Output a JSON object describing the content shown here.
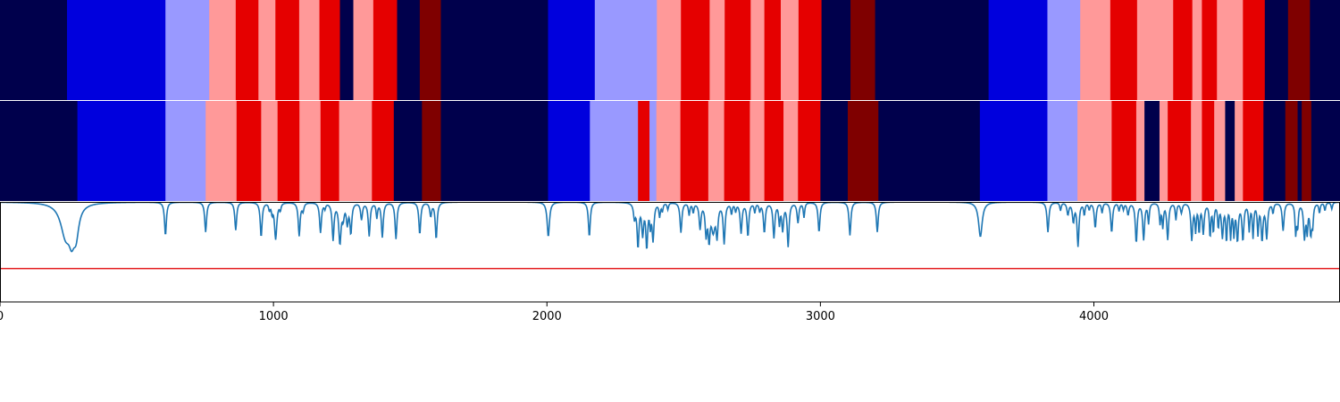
{
  "palette": {
    "0": "#00004c",
    "1": "#0000dd",
    "2": "#9999ff",
    "3": "#ff9999",
    "4": "#e50000",
    "5": "#7f0000"
  },
  "chart_data": {
    "type": "heatmap",
    "title": "",
    "xlabel": "",
    "ylabel": "",
    "xlim": [
      0,
      4900
    ],
    "x_ticks": [
      0,
      1000,
      2000,
      3000,
      4000
    ],
    "x_tick_labels": [
      "0",
      "1000",
      "2000",
      "3000",
      "4000"
    ],
    "segment_rows": [
      {
        "segments": [
          [
            0,
            245,
            0
          ],
          [
            245,
            605,
            1
          ],
          [
            605,
            765,
            2
          ],
          [
            765,
            862,
            3
          ],
          [
            862,
            945,
            4
          ],
          [
            945,
            1007,
            3
          ],
          [
            1007,
            1094,
            4
          ],
          [
            1094,
            1168,
            3
          ],
          [
            1168,
            1243,
            4
          ],
          [
            1243,
            1292,
            0
          ],
          [
            1292,
            1365,
            3
          ],
          [
            1365,
            1452,
            4
          ],
          [
            1452,
            1535,
            0
          ],
          [
            1535,
            1612,
            5
          ],
          [
            1612,
            2004,
            0
          ],
          [
            2004,
            2175,
            1
          ],
          [
            2175,
            2402,
            2
          ],
          [
            2402,
            2490,
            3
          ],
          [
            2490,
            2595,
            4
          ],
          [
            2595,
            2650,
            3
          ],
          [
            2650,
            2745,
            4
          ],
          [
            2745,
            2795,
            3
          ],
          [
            2795,
            2855,
            4
          ],
          [
            2855,
            2920,
            3
          ],
          [
            2920,
            3004,
            4
          ],
          [
            3004,
            3110,
            0
          ],
          [
            3110,
            3200,
            5
          ],
          [
            3200,
            3615,
            0
          ],
          [
            3615,
            3830,
            1
          ],
          [
            3830,
            3950,
            2
          ],
          [
            3950,
            4060,
            3
          ],
          [
            4060,
            4158,
            4
          ],
          [
            4158,
            4290,
            3
          ],
          [
            4290,
            4360,
            4
          ],
          [
            4360,
            4395,
            3
          ],
          [
            4395,
            4450,
            4
          ],
          [
            4450,
            4545,
            3
          ],
          [
            4545,
            4625,
            4
          ],
          [
            4625,
            4710,
            0
          ],
          [
            4710,
            4790,
            5
          ],
          [
            4790,
            4900,
            0
          ]
        ]
      },
      {
        "segments": [
          [
            0,
            283,
            0
          ],
          [
            283,
            605,
            1
          ],
          [
            605,
            752,
            2
          ],
          [
            752,
            865,
            3
          ],
          [
            865,
            955,
            4
          ],
          [
            955,
            1015,
            3
          ],
          [
            1015,
            1095,
            4
          ],
          [
            1095,
            1172,
            3
          ],
          [
            1172,
            1240,
            4
          ],
          [
            1240,
            1360,
            3
          ],
          [
            1360,
            1440,
            4
          ],
          [
            1440,
            1543,
            0
          ],
          [
            1543,
            1612,
            5
          ],
          [
            1612,
            2004,
            0
          ],
          [
            2004,
            2157,
            1
          ],
          [
            2157,
            2333,
            2
          ],
          [
            2333,
            2375,
            4
          ],
          [
            2375,
            2400,
            2
          ],
          [
            2400,
            2488,
            3
          ],
          [
            2488,
            2590,
            4
          ],
          [
            2590,
            2648,
            3
          ],
          [
            2648,
            2742,
            4
          ],
          [
            2742,
            2795,
            3
          ],
          [
            2795,
            2865,
            4
          ],
          [
            2865,
            2918,
            3
          ],
          [
            2918,
            3000,
            4
          ],
          [
            3000,
            3100,
            0
          ],
          [
            3100,
            3212,
            5
          ],
          [
            3212,
            3583,
            0
          ],
          [
            3583,
            3830,
            1
          ],
          [
            3830,
            3940,
            2
          ],
          [
            3940,
            4065,
            3
          ],
          [
            4065,
            4155,
            4
          ],
          [
            4155,
            4185,
            3
          ],
          [
            4185,
            4240,
            0
          ],
          [
            4240,
            4270,
            3
          ],
          [
            4270,
            4355,
            4
          ],
          [
            4355,
            4395,
            3
          ],
          [
            4395,
            4440,
            4
          ],
          [
            4440,
            4480,
            3
          ],
          [
            4480,
            4515,
            0
          ],
          [
            4515,
            4545,
            3
          ],
          [
            4545,
            4620,
            4
          ],
          [
            4620,
            4700,
            0
          ],
          [
            4700,
            4745,
            5
          ],
          [
            4745,
            4760,
            0
          ],
          [
            4760,
            4795,
            5
          ],
          [
            4795,
            4900,
            0
          ]
        ]
      }
    ],
    "line_series": {
      "baseline": 1.0,
      "ylim": [
        -0.5,
        1.0
      ],
      "threshold": 0.0,
      "threshold_color": "#e41a1c",
      "line_color": "#1f77b4",
      "dips": [
        [
          240,
          22,
          0.48
        ],
        [
          262,
          12,
          0.36
        ],
        [
          278,
          12,
          0.4
        ],
        [
          605,
          4,
          0.5
        ],
        [
          752,
          4,
          0.45
        ],
        [
          862,
          4,
          0.42
        ],
        [
          955,
          4,
          0.52
        ],
        [
          985,
          3,
          0.1
        ],
        [
          995,
          3,
          0.14
        ],
        [
          1008,
          5,
          0.55
        ],
        [
          1025,
          3,
          0.1
        ],
        [
          1094,
          4,
          0.5
        ],
        [
          1108,
          4,
          0.12
        ],
        [
          1172,
          4,
          0.45
        ],
        [
          1188,
          3,
          0.08
        ],
        [
          1218,
          4,
          0.55
        ],
        [
          1243,
          5,
          0.6
        ],
        [
          1255,
          4,
          0.2
        ],
        [
          1270,
          4,
          0.3
        ],
        [
          1283,
          4,
          0.45
        ],
        [
          1322,
          4,
          0.25
        ],
        [
          1350,
          4,
          0.5
        ],
        [
          1378,
          3,
          0.22
        ],
        [
          1398,
          4,
          0.52
        ],
        [
          1448,
          4,
          0.55
        ],
        [
          1535,
          4,
          0.48
        ],
        [
          1575,
          4,
          0.2
        ],
        [
          1595,
          4,
          0.55
        ],
        [
          2005,
          5,
          0.52
        ],
        [
          2155,
          4,
          0.52
        ],
        [
          2320,
          4,
          0.22
        ],
        [
          2333,
          4,
          0.65
        ],
        [
          2350,
          4,
          0.45
        ],
        [
          2365,
          4,
          0.65
        ],
        [
          2378,
          3,
          0.3
        ],
        [
          2388,
          4,
          0.55
        ],
        [
          2412,
          3,
          0.2
        ],
        [
          2422,
          3,
          0.12
        ],
        [
          2442,
          3,
          0.1
        ],
        [
          2490,
          4,
          0.45
        ],
        [
          2520,
          3,
          0.18
        ],
        [
          2535,
          3,
          0.14
        ],
        [
          2560,
          4,
          0.38
        ],
        [
          2582,
          4,
          0.45
        ],
        [
          2593,
          4,
          0.5
        ],
        [
          2608,
          8,
          0.4
        ],
        [
          2622,
          4,
          0.45
        ],
        [
          2648,
          4,
          0.6
        ],
        [
          2675,
          3,
          0.16
        ],
        [
          2690,
          3,
          0.12
        ],
        [
          2710,
          4,
          0.45
        ],
        [
          2735,
          4,
          0.5
        ],
        [
          2760,
          3,
          0.14
        ],
        [
          2778,
          3,
          0.12
        ],
        [
          2795,
          4,
          0.45
        ],
        [
          2830,
          4,
          0.52
        ],
        [
          2850,
          3,
          0.3
        ],
        [
          2862,
          4,
          0.4
        ],
        [
          2882,
          4,
          0.65
        ],
        [
          2918,
          4,
          0.3
        ],
        [
          2940,
          3,
          0.22
        ],
        [
          2995,
          4,
          0.45
        ],
        [
          3108,
          4,
          0.5
        ],
        [
          3208,
          4,
          0.45
        ],
        [
          3585,
          8,
          0.52
        ],
        [
          3832,
          4,
          0.45
        ],
        [
          3878,
          3,
          0.12
        ],
        [
          3905,
          4,
          0.18
        ],
        [
          3925,
          4,
          0.28
        ],
        [
          3942,
          4,
          0.65
        ],
        [
          3965,
          3,
          0.18
        ],
        [
          3983,
          3,
          0.1
        ],
        [
          4005,
          4,
          0.38
        ],
        [
          4030,
          3,
          0.15
        ],
        [
          4065,
          4,
          0.45
        ],
        [
          4092,
          3,
          0.12
        ],
        [
          4108,
          3,
          0.1
        ],
        [
          4125,
          4,
          0.18
        ],
        [
          4155,
          4,
          0.6
        ],
        [
          4182,
          4,
          0.55
        ],
        [
          4200,
          3,
          0.3
        ],
        [
          4242,
          3,
          0.3
        ],
        [
          4252,
          3,
          0.35
        ],
        [
          4270,
          4,
          0.55
        ],
        [
          4300,
          3,
          0.25
        ],
        [
          4320,
          4,
          0.15
        ],
        [
          4358,
          4,
          0.55
        ],
        [
          4372,
          3,
          0.4
        ],
        [
          4385,
          3,
          0.42
        ],
        [
          4400,
          4,
          0.45
        ],
        [
          4425,
          3,
          0.5
        ],
        [
          4437,
          3,
          0.42
        ],
        [
          4455,
          3,
          0.35
        ],
        [
          4470,
          4,
          0.5
        ],
        [
          4485,
          3,
          0.55
        ],
        [
          4500,
          3,
          0.5
        ],
        [
          4512,
          3,
          0.45
        ],
        [
          4525,
          4,
          0.55
        ],
        [
          4545,
          4,
          0.55
        ],
        [
          4568,
          3,
          0.4
        ],
        [
          4582,
          3,
          0.5
        ],
        [
          4600,
          3,
          0.45
        ],
        [
          4615,
          4,
          0.55
        ],
        [
          4632,
          4,
          0.52
        ],
        [
          4655,
          3,
          0.15
        ],
        [
          4692,
          4,
          0.42
        ],
        [
          4738,
          3,
          0.45
        ],
        [
          4745,
          3,
          0.35
        ],
        [
          4770,
          4,
          0.52
        ],
        [
          4780,
          3,
          0.4
        ],
        [
          4793,
          4,
          0.45
        ],
        [
          4800,
          3,
          0.3
        ],
        [
          4825,
          3,
          0.15
        ],
        [
          4845,
          3,
          0.12
        ],
        [
          4870,
          3,
          0.1
        ]
      ]
    }
  }
}
